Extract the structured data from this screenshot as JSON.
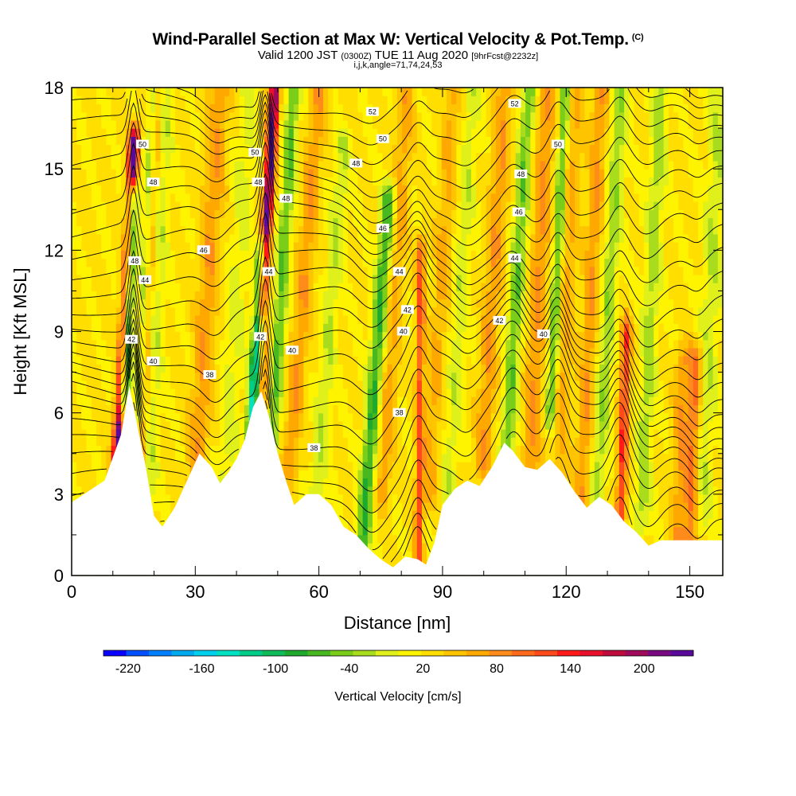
{
  "header": {
    "title": "Wind-Parallel Section at Max W: Vertical Velocity & Pot.Temp.",
    "copyright": "(C)",
    "valid_label": "Valid 1200 JST",
    "valid_utc": "(0300Z)",
    "valid_date": "TUE 11 Aug 2020",
    "forecast": "[9hrFcst@2232z]",
    "indices": "i,j,k,angle=71,74,24,53"
  },
  "chart_data": {
    "type": "heatmap",
    "title": "Wind-Parallel Section at Max W: Vertical Velocity & Pot.Temp.",
    "xlabel": "Distance [nm]",
    "ylabel": "Height [Kft MSL]",
    "xlim": [
      0,
      158
    ],
    "ylim": [
      0,
      18
    ],
    "x_ticks": [
      0,
      30,
      60,
      90,
      120,
      150
    ],
    "y_ticks": [
      0,
      3,
      6,
      9,
      12,
      15,
      18
    ],
    "colorbar": {
      "label": "Vertical Velocity [cm/s]",
      "min": -240,
      "max": 240,
      "tick_values": [
        -220,
        -160,
        -100,
        -40,
        20,
        80,
        140,
        200
      ],
      "tick_labels": [
        "-220",
        "-160",
        "-100",
        "-40",
        "20",
        "80",
        "140",
        "200"
      ],
      "colors": [
        "#0a00ff",
        "#0050ff",
        "#0080ff",
        "#00aaee",
        "#00d0ee",
        "#00e2c2",
        "#00ce88",
        "#10bb5a",
        "#1faa2d",
        "#48b820",
        "#7ace1a",
        "#aadc1e",
        "#dff01a",
        "#fff400",
        "#ffde00",
        "#ffc400",
        "#ffa800",
        "#ff8c1a",
        "#ff6a1c",
        "#ff4a1c",
        "#ff1a1a",
        "#e8102a",
        "#c00c3c",
        "#a00a5a",
        "#7a0a82",
        "#5a0a9a"
      ]
    },
    "terrain": [
      {
        "x": 0,
        "h": 2.7
      },
      {
        "x": 4,
        "h": 3.1
      },
      {
        "x": 8,
        "h": 3.5
      },
      {
        "x": 12,
        "h": 5.2
      },
      {
        "x": 14,
        "h": 7.0
      },
      {
        "x": 16,
        "h": 5.5
      },
      {
        "x": 18,
        "h": 4.0
      },
      {
        "x": 20,
        "h": 2.2
      },
      {
        "x": 22,
        "h": 1.8
      },
      {
        "x": 25,
        "h": 2.5
      },
      {
        "x": 28,
        "h": 3.5
      },
      {
        "x": 31,
        "h": 4.5
      },
      {
        "x": 34,
        "h": 4.0
      },
      {
        "x": 36,
        "h": 3.4
      },
      {
        "x": 38,
        "h": 3.8
      },
      {
        "x": 40,
        "h": 4.3
      },
      {
        "x": 42,
        "h": 5.0
      },
      {
        "x": 44,
        "h": 6.2
      },
      {
        "x": 46,
        "h": 6.8
      },
      {
        "x": 48,
        "h": 5.8
      },
      {
        "x": 50,
        "h": 4.5
      },
      {
        "x": 52,
        "h": 3.5
      },
      {
        "x": 54,
        "h": 2.6
      },
      {
        "x": 57,
        "h": 3.0
      },
      {
        "x": 60,
        "h": 3.0
      },
      {
        "x": 63,
        "h": 2.6
      },
      {
        "x": 66,
        "h": 1.8
      },
      {
        "x": 69,
        "h": 1.5
      },
      {
        "x": 72,
        "h": 1.0
      },
      {
        "x": 75,
        "h": 0.6
      },
      {
        "x": 78,
        "h": 0.3
      },
      {
        "x": 81,
        "h": 0.7
      },
      {
        "x": 84,
        "h": 0.6
      },
      {
        "x": 86,
        "h": 0.4
      },
      {
        "x": 88,
        "h": 1.2
      },
      {
        "x": 90,
        "h": 2.6
      },
      {
        "x": 93,
        "h": 3.2
      },
      {
        "x": 96,
        "h": 3.5
      },
      {
        "x": 99,
        "h": 3.3
      },
      {
        "x": 102,
        "h": 4.0
      },
      {
        "x": 105,
        "h": 4.9
      },
      {
        "x": 107,
        "h": 4.6
      },
      {
        "x": 110,
        "h": 4.0
      },
      {
        "x": 113,
        "h": 3.9
      },
      {
        "x": 116,
        "h": 4.3
      },
      {
        "x": 119,
        "h": 3.8
      },
      {
        "x": 122,
        "h": 3.1
      },
      {
        "x": 125,
        "h": 2.5
      },
      {
        "x": 128,
        "h": 2.9
      },
      {
        "x": 131,
        "h": 2.6
      },
      {
        "x": 134,
        "h": 2.0
      },
      {
        "x": 137,
        "h": 1.6
      },
      {
        "x": 140,
        "h": 1.1
      },
      {
        "x": 143,
        "h": 1.3
      },
      {
        "x": 146,
        "h": 1.3
      },
      {
        "x": 150,
        "h": 1.3
      },
      {
        "x": 154,
        "h": 1.3
      },
      {
        "x": 158,
        "h": 1.3
      }
    ],
    "contour_labels": [
      {
        "x": 17.2,
        "y": 15.9,
        "text": "50"
      },
      {
        "x": 19.8,
        "y": 14.5,
        "text": "48"
      },
      {
        "x": 15.3,
        "y": 11.6,
        "text": "48"
      },
      {
        "x": 17.8,
        "y": 10.9,
        "text": "44"
      },
      {
        "x": 14.5,
        "y": 8.7,
        "text": "42"
      },
      {
        "x": 19.8,
        "y": 7.9,
        "text": "40"
      },
      {
        "x": 32.0,
        "y": 12.0,
        "text": "46"
      },
      {
        "x": 33.5,
        "y": 7.4,
        "text": "38"
      },
      {
        "x": 44.5,
        "y": 15.6,
        "text": "50"
      },
      {
        "x": 45.3,
        "y": 14.5,
        "text": "48"
      },
      {
        "x": 52.0,
        "y": 13.9,
        "text": "48"
      },
      {
        "x": 47.8,
        "y": 11.2,
        "text": "44"
      },
      {
        "x": 45.8,
        "y": 8.8,
        "text": "42"
      },
      {
        "x": 53.5,
        "y": 8.3,
        "text": "40"
      },
      {
        "x": 58.8,
        "y": 4.7,
        "text": "38"
      },
      {
        "x": 73.0,
        "y": 17.1,
        "text": "52"
      },
      {
        "x": 75.5,
        "y": 16.1,
        "text": "50"
      },
      {
        "x": 69.0,
        "y": 15.2,
        "text": "48"
      },
      {
        "x": 75.5,
        "y": 12.8,
        "text": "46"
      },
      {
        "x": 79.5,
        "y": 11.2,
        "text": "44"
      },
      {
        "x": 81.5,
        "y": 9.8,
        "text": "42"
      },
      {
        "x": 80.5,
        "y": 9.0,
        "text": "40"
      },
      {
        "x": 79.5,
        "y": 6.0,
        "text": "38"
      },
      {
        "x": 107.5,
        "y": 17.4,
        "text": "52"
      },
      {
        "x": 118.0,
        "y": 15.9,
        "text": "50"
      },
      {
        "x": 109.0,
        "y": 14.8,
        "text": "48"
      },
      {
        "x": 108.5,
        "y": 13.4,
        "text": "46"
      },
      {
        "x": 107.5,
        "y": 11.7,
        "text": "44"
      },
      {
        "x": 103.8,
        "y": 9.4,
        "text": "42"
      },
      {
        "x": 114.5,
        "y": 8.9,
        "text": "40"
      }
    ]
  }
}
